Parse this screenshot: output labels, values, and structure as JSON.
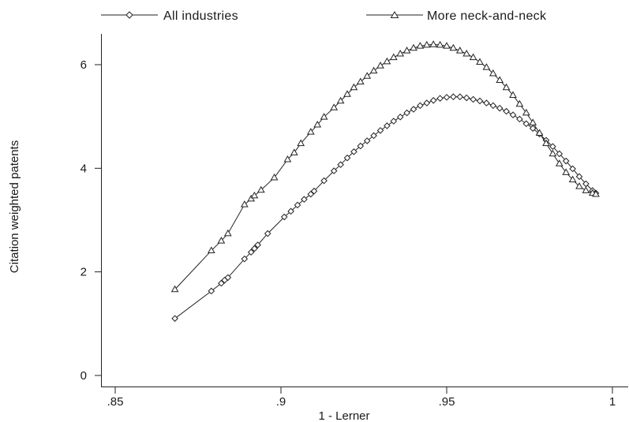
{
  "chart_data": {
    "type": "line",
    "title": "",
    "xlabel": "1 - Lerner",
    "ylabel": "Citation weighted patents",
    "xlim": [
      0.845,
      1.005
    ],
    "ylim": [
      -0.1,
      6.6
    ],
    "xticks": [
      0.85,
      0.9,
      0.95,
      1.0
    ],
    "xtick_labels": [
      ".85",
      ".9",
      ".95",
      "1"
    ],
    "yticks": [
      0,
      2,
      4,
      6
    ],
    "ytick_labels": [
      "0",
      "2",
      "4",
      "6"
    ],
    "grid": false,
    "legend_position": "top",
    "series": [
      {
        "name": "All industries",
        "marker": "diamond",
        "x": [
          0.868,
          0.879,
          0.882,
          0.883,
          0.884,
          0.889,
          0.891,
          0.892,
          0.893,
          0.896,
          0.901,
          0.903,
          0.905,
          0.907,
          0.909,
          0.91,
          0.913,
          0.916,
          0.918,
          0.92,
          0.922,
          0.924,
          0.926,
          0.928,
          0.93,
          0.932,
          0.934,
          0.936,
          0.938,
          0.94,
          0.942,
          0.944,
          0.946,
          0.948,
          0.95,
          0.952,
          0.954,
          0.956,
          0.958,
          0.96,
          0.962,
          0.964,
          0.966,
          0.968,
          0.97,
          0.972,
          0.974,
          0.976,
          0.978,
          0.98,
          0.982,
          0.984,
          0.986,
          0.988,
          0.99,
          0.992,
          0.994,
          0.995
        ],
        "y": [
          1.1,
          1.63,
          1.78,
          1.84,
          1.89,
          2.25,
          2.38,
          2.45,
          2.52,
          2.74,
          3.06,
          3.17,
          3.29,
          3.4,
          3.5,
          3.56,
          3.76,
          3.95,
          4.07,
          4.2,
          4.32,
          4.43,
          4.53,
          4.63,
          4.73,
          4.82,
          4.91,
          4.99,
          5.07,
          5.14,
          5.21,
          5.26,
          5.31,
          5.35,
          5.37,
          5.38,
          5.38,
          5.36,
          5.33,
          5.3,
          5.26,
          5.21,
          5.16,
          5.1,
          5.03,
          4.95,
          4.86,
          4.77,
          4.66,
          4.54,
          4.42,
          4.28,
          4.14,
          3.99,
          3.84,
          3.7,
          3.57,
          3.52
        ]
      },
      {
        "name": "More neck-and-neck",
        "marker": "triangle",
        "x": [
          0.868,
          0.879,
          0.882,
          0.884,
          0.889,
          0.891,
          0.892,
          0.894,
          0.898,
          0.902,
          0.904,
          0.906,
          0.909,
          0.911,
          0.913,
          0.916,
          0.918,
          0.92,
          0.922,
          0.924,
          0.926,
          0.928,
          0.93,
          0.932,
          0.934,
          0.936,
          0.938,
          0.94,
          0.942,
          0.944,
          0.946,
          0.948,
          0.95,
          0.952,
          0.954,
          0.956,
          0.958,
          0.96,
          0.962,
          0.964,
          0.966,
          0.968,
          0.97,
          0.972,
          0.974,
          0.976,
          0.978,
          0.98,
          0.982,
          0.984,
          0.986,
          0.988,
          0.99,
          0.992,
          0.994,
          0.995
        ],
        "y": [
          1.66,
          2.41,
          2.6,
          2.74,
          3.3,
          3.41,
          3.47,
          3.58,
          3.82,
          4.17,
          4.3,
          4.48,
          4.7,
          4.84,
          4.99,
          5.17,
          5.3,
          5.43,
          5.56,
          5.67,
          5.78,
          5.88,
          5.98,
          6.06,
          6.14,
          6.21,
          6.27,
          6.32,
          6.36,
          6.38,
          6.39,
          6.38,
          6.36,
          6.32,
          6.27,
          6.21,
          6.14,
          6.05,
          5.95,
          5.83,
          5.7,
          5.56,
          5.41,
          5.24,
          5.07,
          4.88,
          4.68,
          4.48,
          4.28,
          4.09,
          3.92,
          3.78,
          3.65,
          3.57,
          3.52,
          3.5
        ]
      }
    ]
  }
}
